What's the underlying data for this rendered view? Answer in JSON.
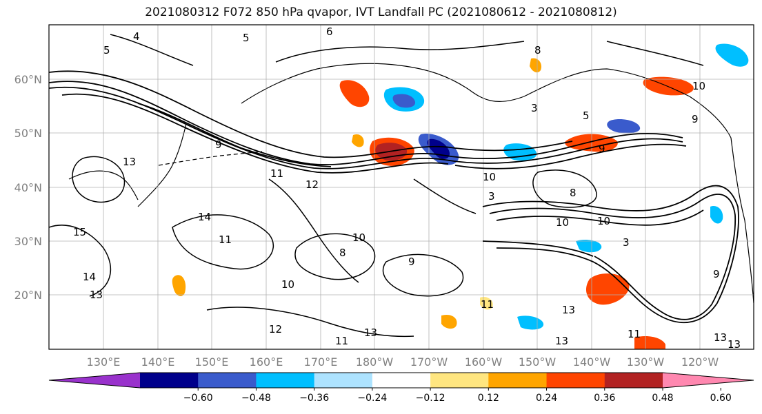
{
  "title": "2021080312 F072 850 hPa qvapor, IVT Landfall PC (2021080612 - 2021080812)",
  "lat_labels": [
    "60°N",
    "50°N",
    "40°N",
    "30°N",
    "20°N"
  ],
  "lon_labels": [
    "130°E",
    "140°E",
    "150°E",
    "160°E",
    "170°E",
    "180°W",
    "170°W",
    "160°W",
    "150°W",
    "140°W",
    "130°W",
    "120°W"
  ],
  "colorbar": {
    "tick_labels": [
      "−0.60",
      "−0.48",
      "−0.36",
      "−0.24",
      "−0.12",
      "0.12",
      "0.24",
      "0.36",
      "0.48",
      "0.60"
    ],
    "colors": [
      "#9932CC",
      "#00008B",
      "#3A5BCC",
      "#00BFFF",
      "#ADE3FF",
      "#FFFFFF",
      "#FFE680",
      "#FFA500",
      "#FF4500",
      "#B22222",
      "#FF88B0"
    ]
  },
  "contour_labels": [
    "5",
    "4",
    "6",
    "5",
    "8",
    "8",
    "10",
    "9",
    "9",
    "3",
    "5",
    "9",
    "3",
    "13",
    "11",
    "12",
    "14",
    "15",
    "11",
    "10",
    "9",
    "8",
    "10",
    "10",
    "10",
    "10",
    "3",
    "9",
    "14",
    "13",
    "13",
    "12",
    "11",
    "13",
    "13",
    "11",
    "11",
    "13",
    "13"
  ]
}
